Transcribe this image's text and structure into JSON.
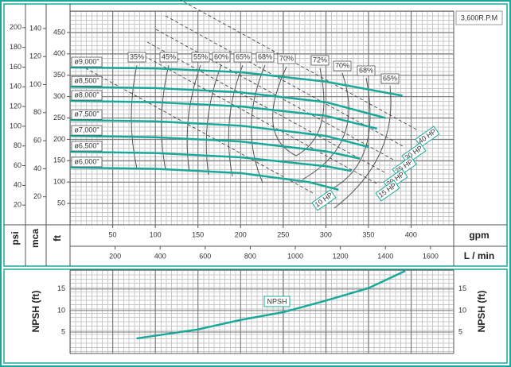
{
  "chart_data": [
    {
      "type": "line",
      "speed": "3,600R.P.M",
      "xlabel": "gpm",
      "xlim": [
        0,
        450
      ],
      "xticks": [
        50,
        100,
        150,
        200,
        250,
        300,
        350,
        400
      ],
      "x2label": "L / min",
      "x2lim": [
        0,
        1703
      ],
      "x2ticks": [
        200,
        400,
        600,
        800,
        1000,
        1200,
        1400,
        1600
      ],
      "ylabel": "ft",
      "ylim": [
        0,
        500
      ],
      "yticks": [
        50,
        100,
        150,
        200,
        250,
        300,
        350,
        400,
        450
      ],
      "y2label": "mca",
      "y2lim": [
        0,
        152.4
      ],
      "y2ticks": [
        20,
        40,
        60,
        80,
        100,
        120,
        140
      ],
      "y3label": "psi",
      "y3lim": [
        0,
        216.8
      ],
      "y3ticks": [
        20,
        40,
        60,
        80,
        100,
        120,
        140,
        160,
        180,
        200
      ],
      "color": "#1aa89a",
      "series": [
        {
          "name": "ø9,000\"",
          "x": [
            0,
            100,
            200,
            300,
            390
          ],
          "values": [
            368,
            366,
            357,
            335,
            302
          ]
        },
        {
          "name": "ø8,500\"",
          "x": [
            0,
            100,
            200,
            300,
            370
          ],
          "values": [
            323,
            320,
            310,
            287,
            250
          ]
        },
        {
          "name": "ø8,000\"",
          "x": [
            0,
            100,
            200,
            300,
            360
          ],
          "values": [
            290,
            287,
            277,
            255,
            225
          ]
        },
        {
          "name": "ø7,500\"",
          "x": [
            0,
            100,
            200,
            300,
            350
          ],
          "values": [
            245,
            242,
            232,
            208,
            182
          ]
        },
        {
          "name": "ø7,000\"",
          "x": [
            0,
            100,
            200,
            300,
            340
          ],
          "values": [
            208,
            205,
            195,
            172,
            155
          ]
        },
        {
          "name": "ø6,500\"",
          "x": [
            0,
            100,
            200,
            300,
            330
          ],
          "values": [
            171,
            168,
            158,
            137,
            126
          ]
        },
        {
          "name": "ø6,000\"",
          "x": [
            0,
            100,
            200,
            280,
            315
          ],
          "values": [
            134,
            131,
            121,
            100,
            82
          ]
        }
      ],
      "efficiency_labels": [
        "35%",
        "45%",
        "55%",
        "60%",
        "65%",
        "68%",
        "70%",
        "72%",
        "70%",
        "68%",
        "65%"
      ],
      "power_labels": [
        "40 HP",
        "30 HP",
        "25 HP",
        "20 HP",
        "15 HP",
        "10 HP"
      ]
    },
    {
      "type": "line",
      "ylabel": "NPSH (ft)",
      "ylim": [
        0,
        19.4
      ],
      "yticks": [
        5,
        10,
        15
      ],
      "xlim": [
        0,
        450
      ],
      "color": "#1aa89a",
      "series": [
        {
          "name": "NPSH",
          "x": [
            78,
            150,
            200,
            250,
            300,
            350,
            393
          ],
          "values": [
            3.5,
            5.6,
            7.8,
            9.6,
            12.3,
            15.2,
            19.2
          ]
        }
      ]
    }
  ]
}
